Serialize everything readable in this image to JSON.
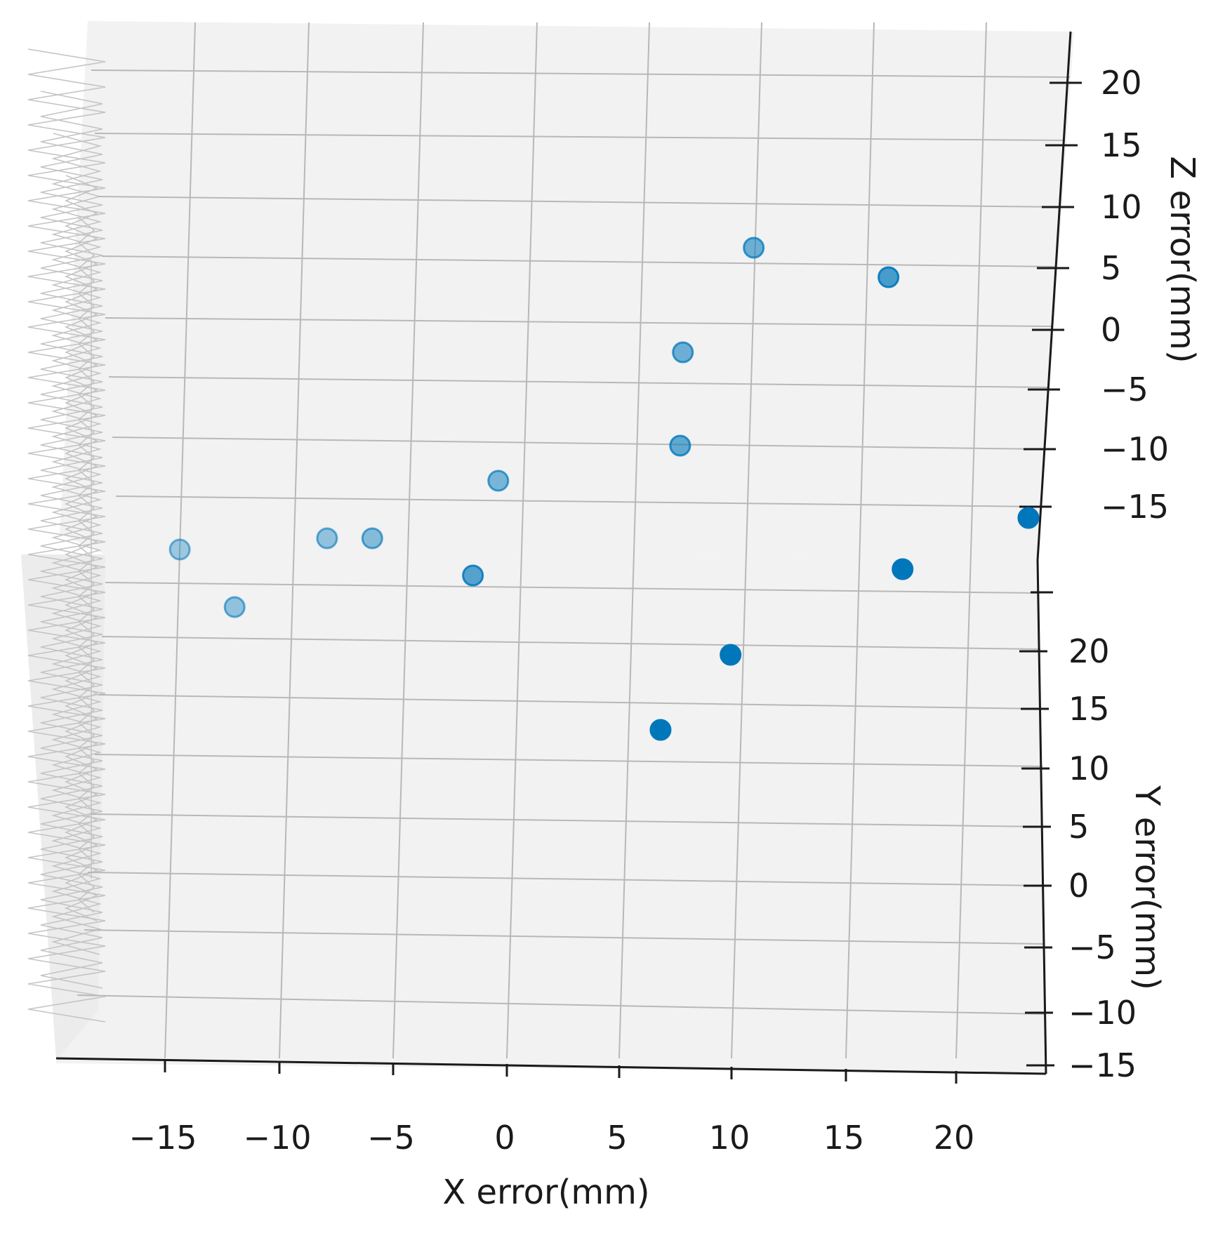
{
  "chart_data": {
    "type": "scatter",
    "title": "",
    "projection": "3d",
    "xlabel": "X error(mm)",
    "ylabel": "Y error(mm)",
    "zlabel": "Z error(mm)",
    "x_ticks": [
      "−15",
      "−10",
      "−5",
      "0",
      "5",
      "10",
      "15",
      "20"
    ],
    "y_ticks": [
      "20",
      "15",
      "10",
      "5",
      "0",
      "−5",
      "−10",
      "−15"
    ],
    "z_ticks": [
      "20",
      "15",
      "10",
      "5",
      "0",
      "−5",
      "−10",
      "−15"
    ],
    "grid": true,
    "colors": {
      "point": "#0077bb",
      "pane": "#f2f2f2",
      "grid": "#b8b8b8",
      "axis": "#1a1a1a"
    },
    "points": [
      {
        "x": 10,
        "depth_alpha": 0.55
      },
      {
        "x": 16,
        "depth_alpha": 0.7
      },
      {
        "x": 7,
        "depth_alpha": 0.55
      },
      {
        "x": 7,
        "depth_alpha": 0.6
      },
      {
        "x": -1,
        "depth_alpha": 0.5
      },
      {
        "x": -15,
        "depth_alpha": 0.35
      },
      {
        "x": -8.5,
        "depth_alpha": 0.4
      },
      {
        "x": -6.5,
        "depth_alpha": 0.45
      },
      {
        "x": -2,
        "depth_alpha": 0.65
      },
      {
        "x": -12.5,
        "depth_alpha": 0.4
      },
      {
        "x": 22.5,
        "depth_alpha": 1.0
      },
      {
        "x": 17,
        "depth_alpha": 1.0
      },
      {
        "x": 9.5,
        "depth_alpha": 1.0
      },
      {
        "x": 6.5,
        "depth_alpha": 1.0
      }
    ]
  }
}
